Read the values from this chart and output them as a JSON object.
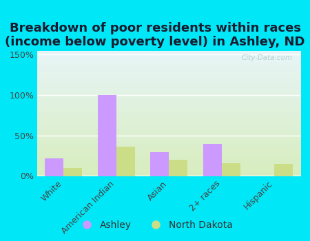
{
  "title": "Breakdown of poor residents within races\n(income below poverty level) in Ashley, ND",
  "categories": [
    "White",
    "American Indian",
    "Asian",
    "2+ races",
    "Hispanic"
  ],
  "ashley_values": [
    22,
    100,
    29,
    40,
    0
  ],
  "nd_values": [
    10,
    36,
    20,
    16,
    15
  ],
  "ashley_color": "#cc99ff",
  "nd_color": "#ccdd88",
  "background_outer": "#00e8f8",
  "gradient_top": "#e8f5f8",
  "gradient_bottom": "#d8edbe",
  "yticks": [
    0,
    50,
    100,
    150
  ],
  "ylim": [
    0,
    155
  ],
  "watermark": "City-Data.com",
  "legend_labels": [
    "Ashley",
    "North Dakota"
  ],
  "title_fontsize": 13,
  "bar_width": 0.35
}
